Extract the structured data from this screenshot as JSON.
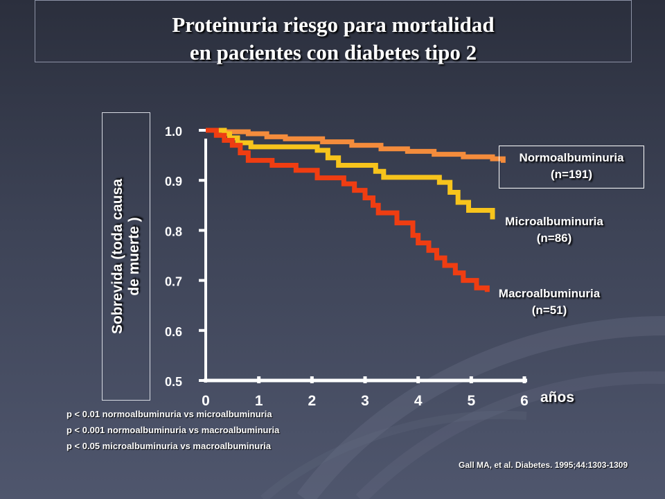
{
  "title": {
    "line1": "Proteinuria riesgo para mortalidad",
    "line2": "en pacientes con diabetes tipo 2"
  },
  "y_axis_label": {
    "line1": "Sobrevida (toda causa",
    "line2": "de muerte )"
  },
  "x_axis_unit": "años",
  "chart_data": {
    "type": "line",
    "step": true,
    "ylabel": "Sobrevida (toda causa de muerte )",
    "xlabel": "años",
    "xlim": [
      0,
      6
    ],
    "ylim": [
      0.5,
      1.0
    ],
    "xticks": [
      "0",
      "1",
      "2",
      "3",
      "4",
      "5",
      "6"
    ],
    "yticks": [
      "1.0",
      "0.9",
      "0.8",
      "0.7",
      "0.6",
      "0.5"
    ],
    "series": [
      {
        "name": "Normoalbuminuria",
        "n_label": "(n=191)",
        "color": "#f48c3c",
        "points": [
          [
            0,
            1.0
          ],
          [
            0.25,
            1.0
          ],
          [
            0.35,
            0.997
          ],
          [
            0.8,
            0.993
          ],
          [
            1.15,
            0.987
          ],
          [
            1.5,
            0.983
          ],
          [
            2.2,
            0.977
          ],
          [
            2.75,
            0.97
          ],
          [
            3.3,
            0.963
          ],
          [
            3.8,
            0.958
          ],
          [
            4.3,
            0.952
          ],
          [
            4.85,
            0.947
          ],
          [
            5.4,
            0.943
          ],
          [
            5.6,
            0.935
          ]
        ]
      },
      {
        "name": "Microalbuminuria",
        "n_label": "(n=86)",
        "color": "#f7c41c",
        "points": [
          [
            0,
            1.0
          ],
          [
            0.25,
            1.0
          ],
          [
            0.35,
            0.993
          ],
          [
            0.45,
            0.985
          ],
          [
            0.6,
            0.975
          ],
          [
            0.85,
            0.967
          ],
          [
            2.1,
            0.96
          ],
          [
            2.3,
            0.945
          ],
          [
            2.5,
            0.93
          ],
          [
            3.2,
            0.918
          ],
          [
            3.35,
            0.906
          ],
          [
            4.4,
            0.896
          ],
          [
            4.6,
            0.876
          ],
          [
            4.75,
            0.856
          ],
          [
            4.95,
            0.84
          ],
          [
            5.4,
            0.822
          ]
        ]
      },
      {
        "name": "Macroalbuminuria",
        "n_label": "(n=51)",
        "color": "#ef3d12",
        "points": [
          [
            0,
            1.0
          ],
          [
            0.1,
            1.0
          ],
          [
            0.2,
            0.99
          ],
          [
            0.35,
            0.98
          ],
          [
            0.5,
            0.97
          ],
          [
            0.65,
            0.955
          ],
          [
            0.8,
            0.94
          ],
          [
            1.25,
            0.93
          ],
          [
            1.7,
            0.92
          ],
          [
            2.1,
            0.905
          ],
          [
            2.6,
            0.893
          ],
          [
            2.8,
            0.88
          ],
          [
            3.0,
            0.865
          ],
          [
            3.15,
            0.85
          ],
          [
            3.25,
            0.835
          ],
          [
            3.6,
            0.815
          ],
          [
            3.9,
            0.79
          ],
          [
            4.0,
            0.775
          ],
          [
            4.2,
            0.76
          ],
          [
            4.35,
            0.745
          ],
          [
            4.5,
            0.73
          ],
          [
            4.7,
            0.715
          ],
          [
            4.85,
            0.7
          ],
          [
            5.1,
            0.685
          ],
          [
            5.3,
            0.677
          ]
        ]
      }
    ]
  },
  "stats": [
    "p < 0.01 normoalbuminuria vs microalbuminuria",
    "p < 0.001 normoalbuminuria vs macroalbuminuria",
    "p < 0.05 microalbuminuria vs macroalbuminuria"
  ],
  "citation": "Gall MA, et al. Diabetes. 1995;44:1303-1309"
}
